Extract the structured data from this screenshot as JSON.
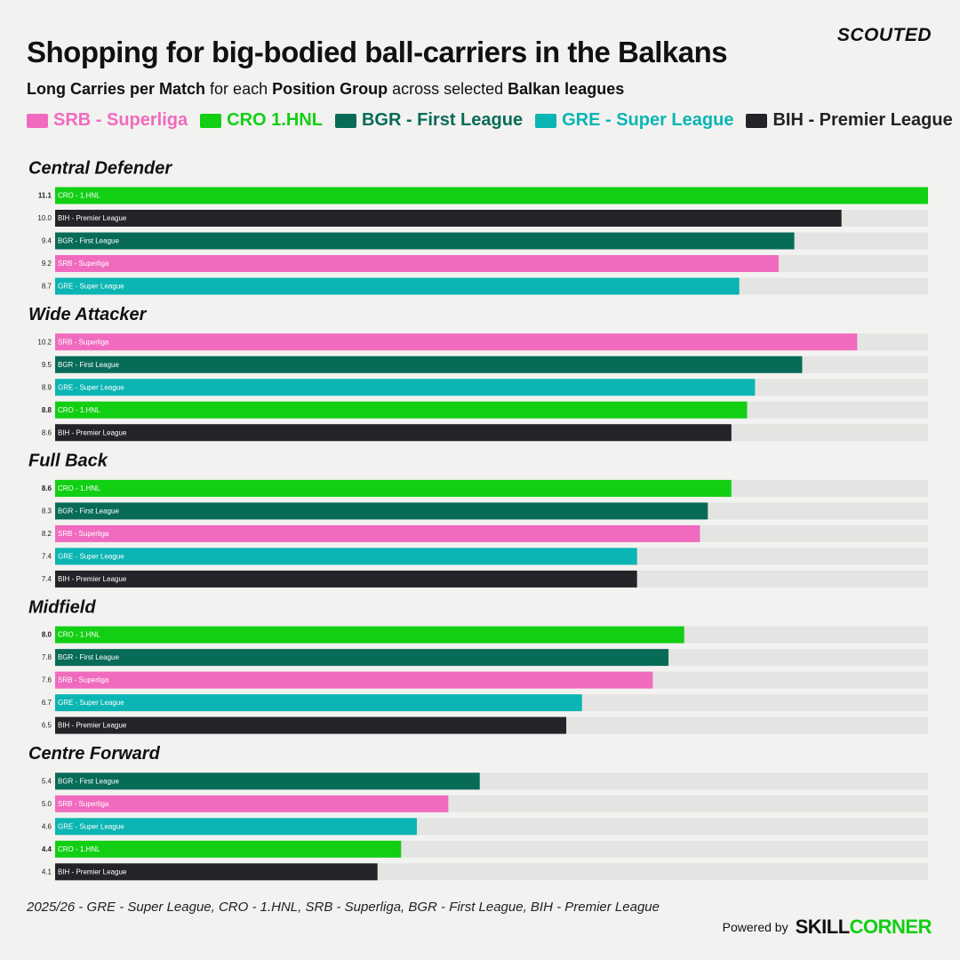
{
  "chart_data": {
    "type": "bar",
    "title": "Shopping for big-bodied ball-carriers in the Balkans",
    "subtitle": [
      "Long Carries per Match",
      " for each ",
      "Position Group",
      " across selected ",
      "Balkan leagues"
    ],
    "brand": "SCOUTED",
    "series": [
      {
        "name": "SRB - Superliga",
        "label": "SRB - Superliga",
        "color": "#f06bbf"
      },
      {
        "name": "CRO 1.HNL",
        "label": "CRO - 1.HNL",
        "color": "#12cf14"
      },
      {
        "name": "BGR - First League",
        "label": "BGR - First League",
        "color": "#076b58"
      },
      {
        "name": "GRE - Super League",
        "label": "GRE - Super League",
        "color": "#0ab5b3"
      },
      {
        "name": "BIH - Premier League",
        "label": "BIH - Premier League",
        "color": "#222428"
      }
    ],
    "highlight_series": 1,
    "xlim": [
      0,
      11.1
    ],
    "groups": [
      {
        "name": "Central Defender",
        "categories": [
          "CRO - 1.HNL",
          "BIH - Premier League",
          "BGR - First League",
          "SRB - Superliga",
          "GRE - Super League"
        ],
        "values": [
          11.1,
          10.0,
          9.4,
          9.2,
          8.7
        ],
        "value_labels": [
          "11.1",
          "10.0",
          "9.4",
          "9.2",
          "8.7"
        ]
      },
      {
        "name": "Wide Attacker",
        "categories": [
          "SRB - Superliga",
          "BGR - First League",
          "GRE - Super League",
          "CRO - 1.HNL",
          "BIH - Premier League"
        ],
        "values": [
          10.2,
          9.5,
          8.9,
          8.8,
          8.6
        ],
        "value_labels": [
          "10.2",
          "9.5",
          "8.9",
          "8.8",
          "8.6"
        ]
      },
      {
        "name": "Full Back",
        "categories": [
          "CRO - 1.HNL",
          "BGR - First League",
          "SRB - Superliga",
          "GRE - Super League",
          "BIH - Premier League"
        ],
        "values": [
          8.6,
          8.3,
          8.2,
          7.4,
          7.4
        ],
        "value_labels": [
          "8.6",
          "8.3",
          "8.2",
          "7.4",
          "7.4"
        ]
      },
      {
        "name": "Midfield",
        "categories": [
          "CRO - 1.HNL",
          "BGR - First League",
          "SRB - Superliga",
          "GRE - Super League",
          "BIH - Premier League"
        ],
        "values": [
          8.0,
          7.8,
          7.6,
          6.7,
          6.5
        ],
        "value_labels": [
          "8.0",
          "7.8",
          "7.6",
          "6.7",
          "6.5"
        ]
      },
      {
        "name": "Centre Forward",
        "categories": [
          "BGR - First League",
          "SRB - Superliga",
          "GRE - Super League",
          "CRO - 1.HNL",
          "BIH - Premier League"
        ],
        "values": [
          5.4,
          5.0,
          4.6,
          4.4,
          4.1
        ],
        "value_labels": [
          "5.4",
          "5.0",
          "4.6",
          "4.4",
          "4.1"
        ]
      }
    ],
    "footnote": "2025/26 - GRE - Super League, CRO - 1.HNL, SRB - Superliga, BGR - First League, BIH - Premier League",
    "powered_by": "Powered by",
    "logo": [
      "SKILL",
      "CORNER"
    ]
  }
}
